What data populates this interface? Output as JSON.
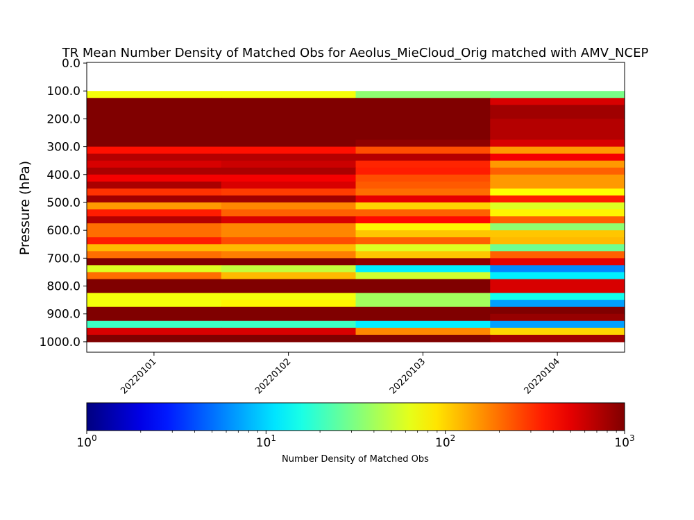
{
  "chart_data": {
    "type": "heatmap",
    "title": "TR Mean Number Density of Matched Obs for Aeolus_MieCloud_Orig matched with AMV_NCEP",
    "xlabel": "",
    "ylabel": "Pressure (hPa)",
    "x_categories": [
      "20220101",
      "20220102",
      "20220103",
      "20220104"
    ],
    "y_ticks": [
      0,
      100,
      200,
      300,
      400,
      500,
      600,
      700,
      800,
      900,
      1000
    ],
    "y_tick_labels": [
      "0.0",
      "100.0",
      "200.0",
      "300.0",
      "400.0",
      "500.0",
      "600.0",
      "700.0",
      "800.0",
      "900.0",
      "1000.0"
    ],
    "ylim": [
      1037.5,
      -2.5
    ],
    "y_inverted": true,
    "colormap": "jet",
    "color_scale": "log",
    "clim": [
      1,
      1000
    ],
    "colorbar": {
      "label": "Number Density of Matched Obs",
      "ticks": [
        1,
        10,
        100,
        1000
      ],
      "tick_base": "10",
      "tick_exponents": [
        "0",
        "1",
        "2",
        "3"
      ]
    },
    "rows": [
      {
        "y0": 0,
        "y1": 100,
        "values": [
          null,
          null,
          null,
          null
        ]
      },
      {
        "y0": 100,
        "y1": 125,
        "values": [
          70,
          70,
          35,
          30
        ]
      },
      {
        "y0": 125,
        "y1": 150,
        "values": [
          1000,
          1000,
          1000,
          550
        ]
      },
      {
        "y0": 150,
        "y1": 175,
        "values": [
          1000,
          1000,
          1000,
          800
        ]
      },
      {
        "y0": 175,
        "y1": 200,
        "values": [
          1000,
          1000,
          1000,
          800
        ]
      },
      {
        "y0": 200,
        "y1": 225,
        "values": [
          1000,
          1000,
          1000,
          700
        ]
      },
      {
        "y0": 225,
        "y1": 250,
        "values": [
          1000,
          1000,
          1000,
          700
        ]
      },
      {
        "y0": 250,
        "y1": 275,
        "values": [
          1000,
          1000,
          1000,
          700
        ]
      },
      {
        "y0": 275,
        "y1": 300,
        "values": [
          1000,
          1000,
          900,
          550
        ]
      },
      {
        "y0": 300,
        "y1": 325,
        "values": [
          380,
          380,
          250,
          150
        ]
      },
      {
        "y0": 325,
        "y1": 350,
        "values": [
          700,
          700,
          700,
          450
        ]
      },
      {
        "y0": 350,
        "y1": 375,
        "values": [
          550,
          600,
          330,
          150
        ]
      },
      {
        "y0": 375,
        "y1": 400,
        "values": [
          750,
          750,
          350,
          220
        ]
      },
      {
        "y0": 400,
        "y1": 425,
        "values": [
          450,
          450,
          250,
          150
        ]
      },
      {
        "y0": 425,
        "y1": 450,
        "values": [
          750,
          550,
          230,
          150
        ]
      },
      {
        "y0": 450,
        "y1": 475,
        "values": [
          300,
          280,
          200,
          75
        ]
      },
      {
        "y0": 475,
        "y1": 500,
        "values": [
          800,
          800,
          500,
          350
        ]
      },
      {
        "y0": 500,
        "y1": 525,
        "values": [
          150,
          170,
          100,
          60
        ]
      },
      {
        "y0": 525,
        "y1": 550,
        "values": [
          350,
          220,
          220,
          80
        ]
      },
      {
        "y0": 550,
        "y1": 575,
        "values": [
          700,
          550,
          400,
          220
        ]
      },
      {
        "y0": 575,
        "y1": 600,
        "values": [
          200,
          170,
          80,
          35
        ]
      },
      {
        "y0": 600,
        "y1": 625,
        "values": [
          200,
          170,
          110,
          110
        ]
      },
      {
        "y0": 625,
        "y1": 650,
        "values": [
          350,
          250,
          220,
          120
        ]
      },
      {
        "y0": 650,
        "y1": 675,
        "values": [
          120,
          120,
          60,
          28
        ]
      },
      {
        "y0": 675,
        "y1": 700,
        "values": [
          200,
          180,
          110,
          220
        ]
      },
      {
        "y0": 700,
        "y1": 725,
        "values": [
          1000,
          1000,
          900,
          500
        ]
      },
      {
        "y0": 725,
        "y1": 750,
        "values": [
          60,
          50,
          12,
          6
        ]
      },
      {
        "y0": 750,
        "y1": 775,
        "values": [
          200,
          120,
          55,
          12
        ]
      },
      {
        "y0": 775,
        "y1": 800,
        "values": [
          1000,
          1000,
          1000,
          550
        ]
      },
      {
        "y0": 800,
        "y1": 825,
        "values": [
          1000,
          1000,
          1000,
          550
        ]
      },
      {
        "y0": 825,
        "y1": 850,
        "values": [
          70,
          70,
          40,
          15
        ]
      },
      {
        "y0": 850,
        "y1": 875,
        "values": [
          70,
          80,
          40,
          7
        ]
      },
      {
        "y0": 875,
        "y1": 900,
        "values": [
          1000,
          1000,
          1000,
          1000
        ]
      },
      {
        "y0": 900,
        "y1": 925,
        "values": [
          1000,
          1000,
          1000,
          850
        ]
      },
      {
        "y0": 925,
        "y1": 950,
        "values": [
          20,
          20,
          12,
          7
        ]
      },
      {
        "y0": 950,
        "y1": 975,
        "values": [
          550,
          550,
          170,
          100
        ]
      },
      {
        "y0": 975,
        "y1": 1000,
        "values": [
          1000,
          1000,
          1000,
          800
        ]
      }
    ]
  }
}
